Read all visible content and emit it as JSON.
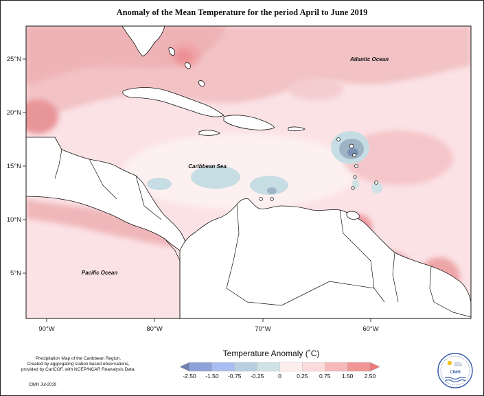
{
  "title": "Anomaly of the Mean Temperature for the period April to June 2019",
  "map": {
    "lat_ticks": [
      "25°N",
      "20°N",
      "15°N",
      "10°N",
      "5°N"
    ],
    "lon_ticks": [
      "90°W",
      "80°W",
      "70°W",
      "60°W"
    ],
    "labels": {
      "atlantic": "Atlantic Ocean",
      "caribbean": "Caribbean Sea",
      "pacific": "Pacific Ocean"
    }
  },
  "legend": {
    "title": "Temperature Anomaly (˚C)",
    "ticks": [
      "-2.50",
      "-1.50",
      "-0.75",
      "-0.25",
      "0",
      "0.25",
      "0.75",
      "1.50",
      "2.50"
    ],
    "colors": [
      "#6f7fb0",
      "#8ea2d8",
      "#a9bdf0",
      "#b8cfe0",
      "#cfe3e6",
      "#fdeeee",
      "#fcdcdc",
      "#f6b8b8",
      "#f19595",
      "#ef7b7b"
    ]
  },
  "credit": {
    "lines": [
      "Precipitation Map of the Caribbean Region.",
      "Created by aggregating station based observations,",
      "provided by CariCOF, with NCEP/NCAR Reanalysis Data."
    ],
    "date": "CIMH Jul-2019"
  },
  "logo": {
    "text": "CIMH"
  },
  "colors": {
    "anomaly_light_pink": "#fde3e6",
    "anomaly_pink": "#f7c9cc",
    "anomaly_medium": "#eeaeb1",
    "anomaly_strong": "#e88a8e",
    "anomaly_negative_light": "#c9dde3",
    "anomaly_negative_medium": "#9db4c4",
    "anomaly_negative_strong": "#6f87aa",
    "land": "#ffffff"
  }
}
